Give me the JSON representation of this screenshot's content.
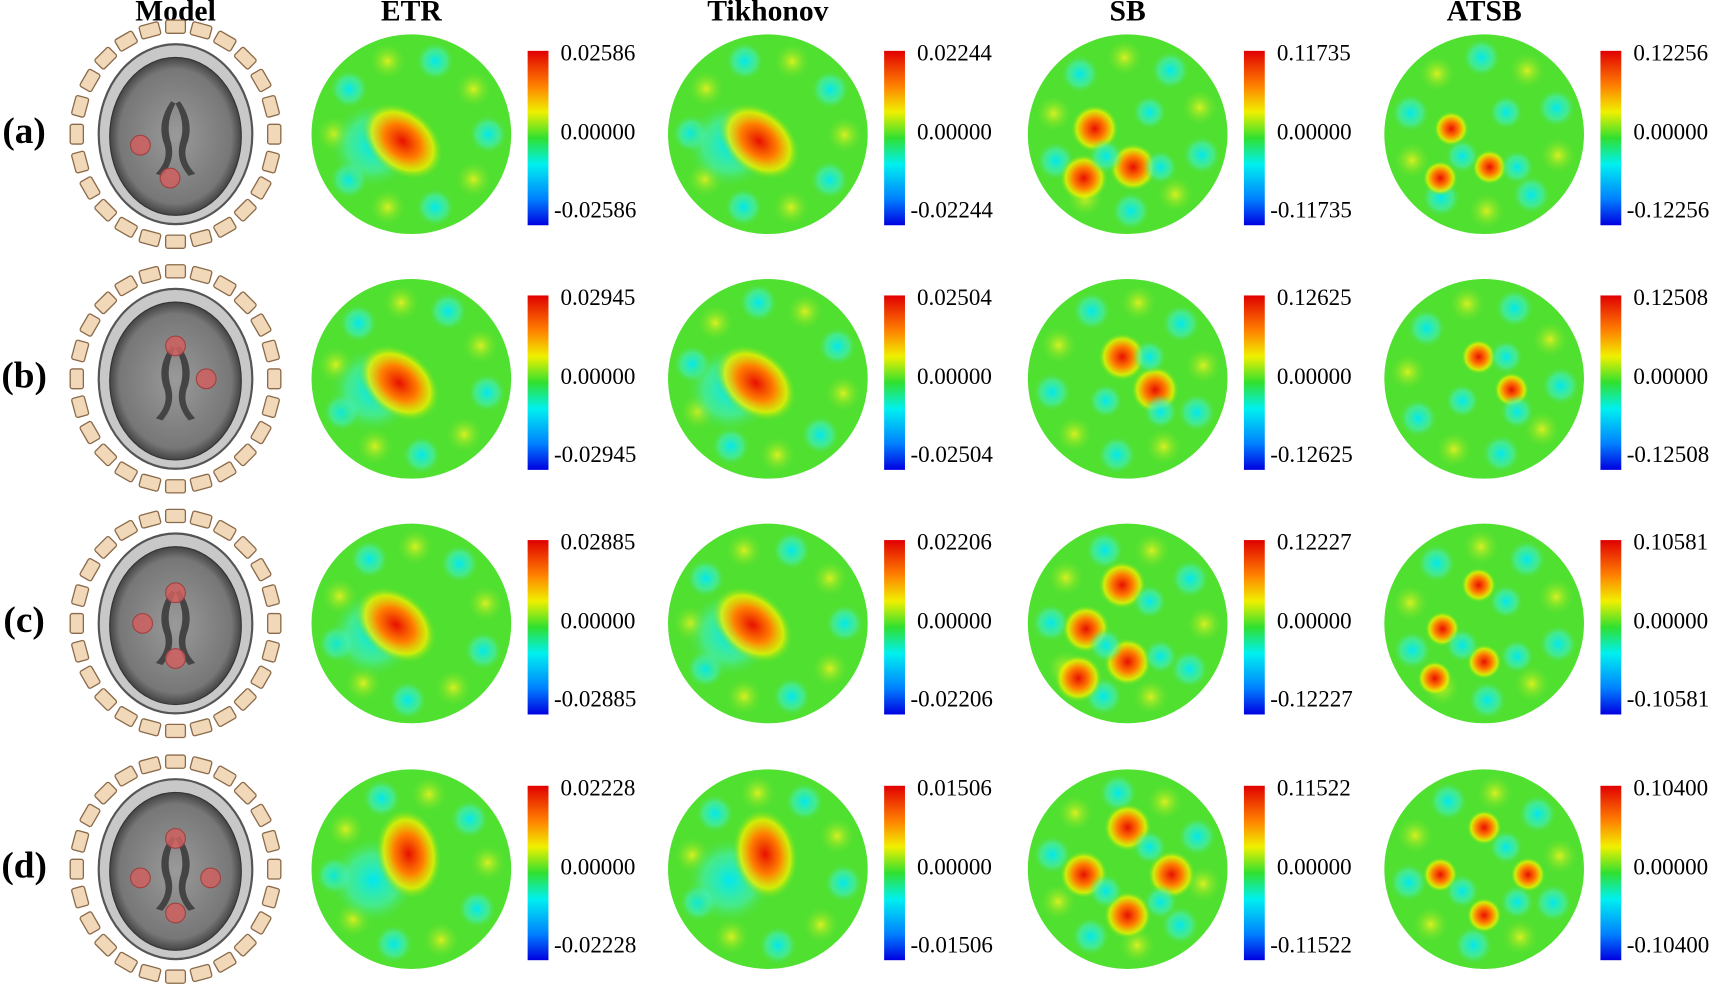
{
  "columns": [
    "Model",
    "ETR",
    "Tikhonov",
    "SB",
    "ATSB"
  ],
  "rows": [
    {
      "label": "(a)",
      "scales": [
        [
          "0.02586",
          "0.00000",
          "-0.02586"
        ],
        [
          "0.02244",
          "0.00000",
          "-0.02244"
        ],
        [
          "0.11735",
          "0.00000",
          "-0.11735"
        ],
        [
          "0.12256",
          "0.00000",
          "-0.12256"
        ]
      ]
    },
    {
      "label": "(b)",
      "scales": [
        [
          "0.02945",
          "0.00000",
          "-0.02945"
        ],
        [
          "0.02504",
          "0.00000",
          "-0.02504"
        ],
        [
          "0.12625",
          "0.00000",
          "-0.12625"
        ],
        [
          "0.12508",
          "0.00000",
          "-0.12508"
        ]
      ]
    },
    {
      "label": "(c)",
      "scales": [
        [
          "0.02885",
          "0.00000",
          "-0.02885"
        ],
        [
          "0.02206",
          "0.00000",
          "-0.02206"
        ],
        [
          "0.12227",
          "0.00000",
          "-0.12227"
        ],
        [
          "0.10581",
          "0.00000",
          "-0.10581"
        ]
      ]
    },
    {
      "label": "(d)",
      "scales": [
        [
          "0.02228",
          "0.00000",
          "-0.02228"
        ],
        [
          "0.01506",
          "0.00000",
          "-0.01506"
        ],
        [
          "0.11522",
          "0.00000",
          "-0.11522"
        ],
        [
          "0.10400",
          "0.00000",
          "-0.10400"
        ]
      ]
    }
  ]
}
